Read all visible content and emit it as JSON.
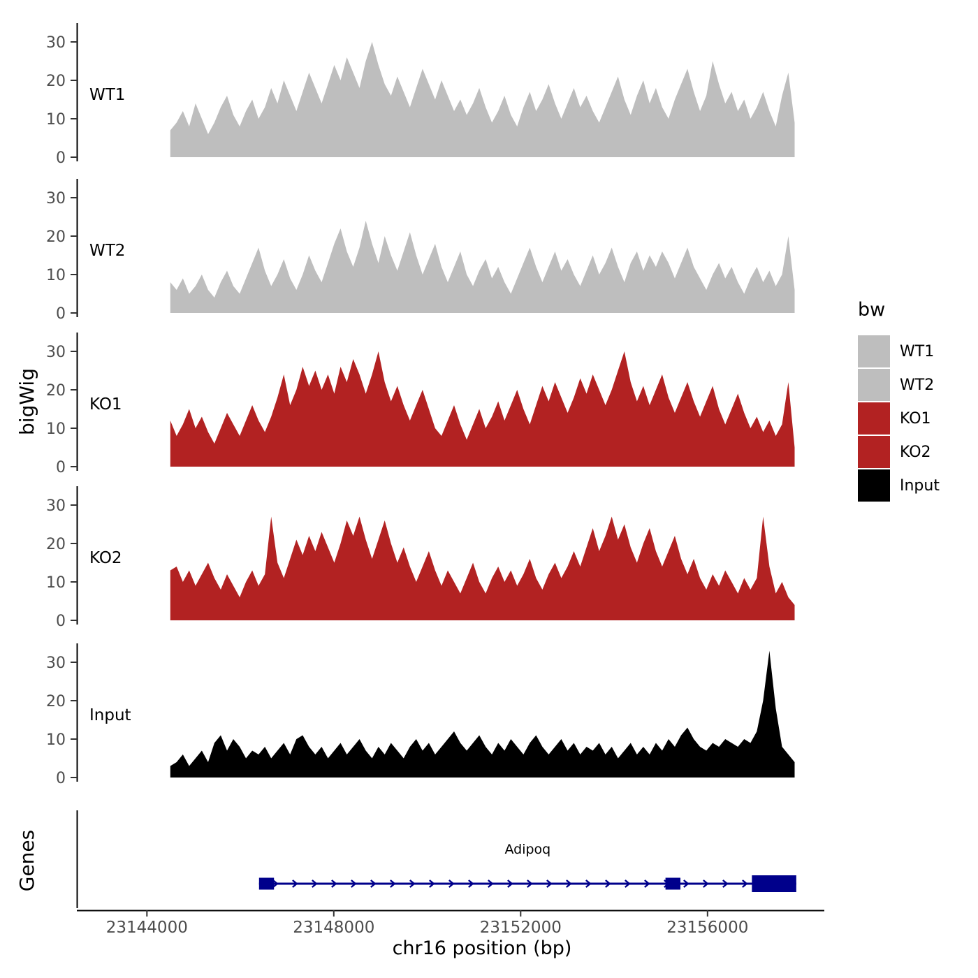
{
  "ylabel": "bigWig",
  "genes_label": "Genes",
  "xlabel": "chr16 position (bp)",
  "legend": {
    "title": "bw",
    "items": [
      {
        "label": "WT1",
        "color": "#bebebe"
      },
      {
        "label": "WT2",
        "color": "#bebebe"
      },
      {
        "label": "KO1",
        "color": "#b22222"
      },
      {
        "label": "KO2",
        "color": "#b22222"
      },
      {
        "label": "Input",
        "color": "#000000"
      }
    ]
  },
  "axis": {
    "x_ticks": [
      23144000,
      23148000,
      23152000,
      23156000
    ],
    "x_tick_labels": [
      "23144000",
      "23148000",
      "23152000",
      "23156000"
    ],
    "xlim": [
      23142500,
      23158500
    ],
    "y_ticks": [
      0,
      10,
      20,
      30
    ],
    "y_tick_labels": [
      "0",
      "10",
      "20",
      "30"
    ],
    "ylim": [
      0,
      33
    ]
  },
  "chart_data": {
    "type": "area",
    "title": "",
    "x_start": 23144500,
    "x_step": 135,
    "series": [
      {
        "name": "WT1",
        "color": "#bebebe",
        "values": [
          7,
          9,
          12,
          8,
          14,
          10,
          6,
          9,
          13,
          16,
          11,
          8,
          12,
          15,
          10,
          13,
          18,
          14,
          20,
          16,
          12,
          17,
          22,
          18,
          14,
          19,
          24,
          20,
          26,
          22,
          18,
          25,
          30,
          24,
          19,
          16,
          21,
          17,
          13,
          18,
          23,
          19,
          15,
          20,
          16,
          12,
          15,
          11,
          14,
          18,
          13,
          9,
          12,
          16,
          11,
          8,
          13,
          17,
          12,
          15,
          19,
          14,
          10,
          14,
          18,
          13,
          16,
          12,
          9,
          13,
          17,
          21,
          15,
          11,
          16,
          20,
          14,
          18,
          13,
          10,
          15,
          19,
          23,
          17,
          12,
          16,
          25,
          19,
          14,
          17,
          12,
          15,
          10,
          13,
          17,
          12,
          8,
          16,
          22,
          9
        ]
      },
      {
        "name": "WT2",
        "color": "#bebebe",
        "values": [
          8,
          6,
          9,
          5,
          7,
          10,
          6,
          4,
          8,
          11,
          7,
          5,
          9,
          13,
          17,
          11,
          7,
          10,
          14,
          9,
          6,
          10,
          15,
          11,
          8,
          13,
          18,
          22,
          16,
          12,
          17,
          24,
          18,
          13,
          20,
          15,
          11,
          16,
          21,
          15,
          10,
          14,
          18,
          12,
          8,
          12,
          16,
          10,
          7,
          11,
          14,
          9,
          12,
          8,
          5,
          9,
          13,
          17,
          12,
          8,
          12,
          16,
          11,
          14,
          10,
          7,
          11,
          15,
          10,
          13,
          17,
          12,
          8,
          13,
          16,
          11,
          15,
          12,
          16,
          13,
          9,
          13,
          17,
          12,
          9,
          6,
          10,
          13,
          9,
          12,
          8,
          5,
          9,
          12,
          8,
          11,
          7,
          10,
          20,
          6
        ]
      },
      {
        "name": "KO1",
        "color": "#b22222",
        "values": [
          12,
          8,
          11,
          15,
          10,
          13,
          9,
          6,
          10,
          14,
          11,
          8,
          12,
          16,
          12,
          9,
          13,
          18,
          24,
          16,
          20,
          26,
          21,
          25,
          20,
          24,
          19,
          26,
          22,
          28,
          24,
          19,
          24,
          30,
          22,
          17,
          21,
          16,
          12,
          16,
          20,
          15,
          10,
          8,
          12,
          16,
          11,
          7,
          11,
          15,
          10,
          13,
          17,
          12,
          16,
          20,
          15,
          11,
          16,
          21,
          17,
          22,
          18,
          14,
          18,
          23,
          19,
          24,
          20,
          16,
          20,
          25,
          30,
          22,
          17,
          21,
          16,
          20,
          24,
          18,
          14,
          18,
          22,
          17,
          13,
          17,
          21,
          15,
          11,
          15,
          19,
          14,
          10,
          13,
          9,
          12,
          8,
          11,
          22,
          5
        ]
      },
      {
        "name": "KO2",
        "color": "#b22222",
        "values": [
          13,
          14,
          10,
          13,
          9,
          12,
          15,
          11,
          8,
          12,
          9,
          6,
          10,
          13,
          9,
          12,
          27,
          15,
          11,
          16,
          21,
          17,
          22,
          18,
          23,
          19,
          15,
          20,
          26,
          22,
          27,
          21,
          16,
          21,
          26,
          20,
          15,
          19,
          14,
          10,
          14,
          18,
          13,
          9,
          13,
          10,
          7,
          11,
          15,
          10,
          7,
          11,
          14,
          10,
          13,
          9,
          12,
          16,
          11,
          8,
          12,
          15,
          11,
          14,
          18,
          14,
          19,
          24,
          18,
          22,
          27,
          21,
          25,
          19,
          15,
          20,
          24,
          18,
          14,
          18,
          22,
          16,
          12,
          16,
          11,
          8,
          12,
          9,
          13,
          10,
          7,
          11,
          8,
          11,
          27,
          14,
          7,
          10,
          6,
          4
        ]
      },
      {
        "name": "Input",
        "color": "#000000",
        "values": [
          3,
          4,
          6,
          3,
          5,
          7,
          4,
          9,
          11,
          7,
          10,
          8,
          5,
          7,
          6,
          8,
          5,
          7,
          9,
          6,
          10,
          11,
          8,
          6,
          8,
          5,
          7,
          9,
          6,
          8,
          10,
          7,
          5,
          8,
          6,
          9,
          7,
          5,
          8,
          10,
          7,
          9,
          6,
          8,
          10,
          12,
          9,
          7,
          9,
          11,
          8,
          6,
          9,
          7,
          10,
          8,
          6,
          9,
          11,
          8,
          6,
          8,
          10,
          7,
          9,
          6,
          8,
          7,
          9,
          6,
          8,
          5,
          7,
          9,
          6,
          8,
          6,
          9,
          7,
          10,
          8,
          11,
          13,
          10,
          8,
          7,
          9,
          8,
          10,
          9,
          8,
          10,
          9,
          12,
          20,
          33,
          18,
          8,
          6,
          4
        ]
      }
    ],
    "gene_track": {
      "name": "Adipoq",
      "color": "#00008b",
      "strand": "+",
      "start": 23146400,
      "end": 23157900,
      "exons": [
        [
          23146400,
          23146720
        ],
        [
          23155100,
          23155420
        ],
        [
          23156950,
          23157900
        ]
      ]
    }
  }
}
